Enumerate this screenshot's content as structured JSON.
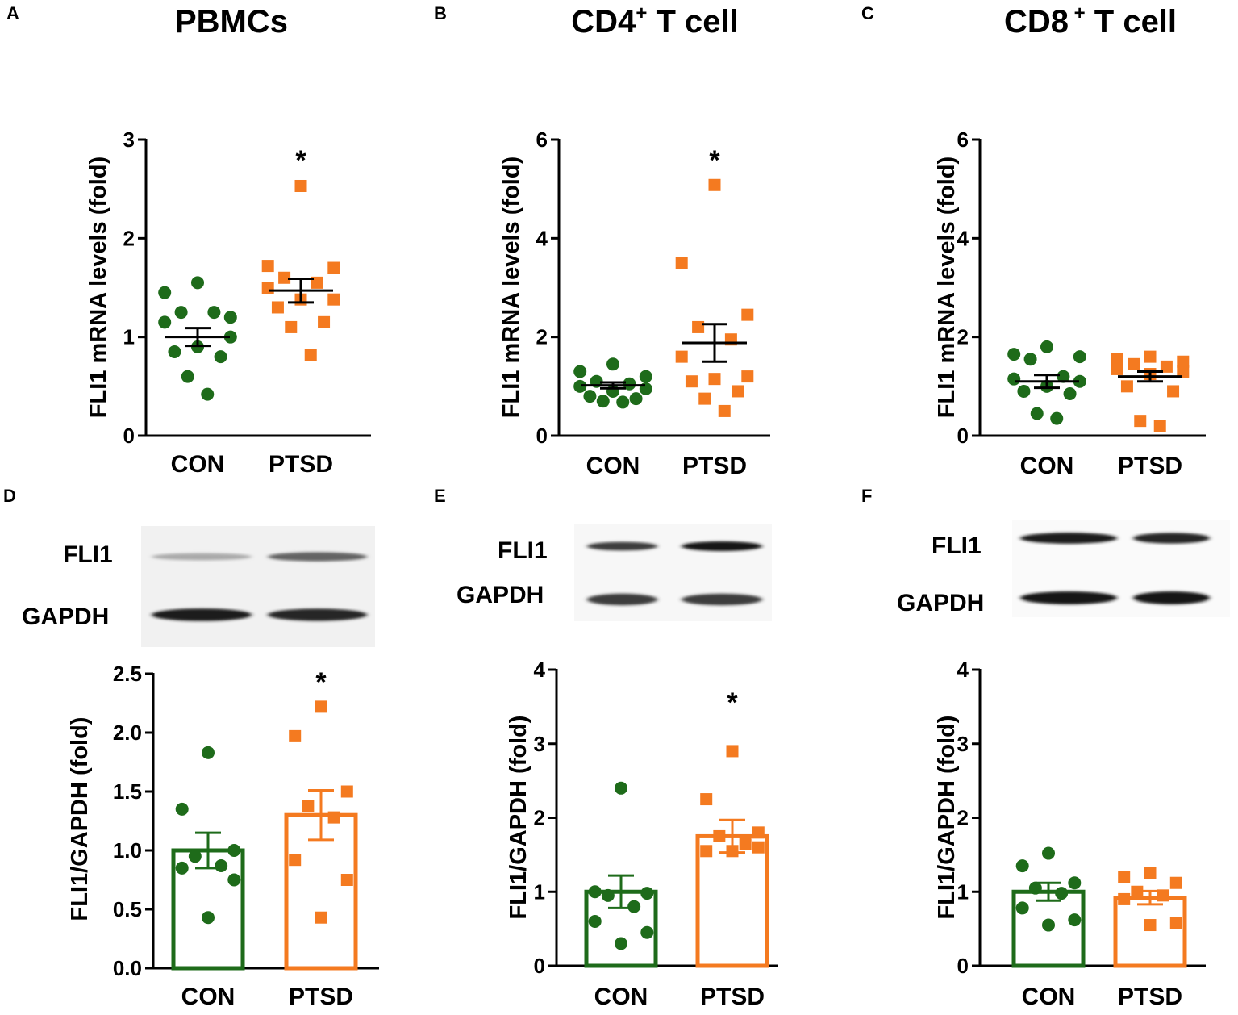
{
  "colors": {
    "con": "#1e6b1a",
    "ptsd": "#f47a20",
    "axis": "#000000"
  },
  "blots": [
    {
      "panel": "D",
      "labels": [
        "FLI1",
        "GAPDH"
      ],
      "bands": [
        {
          "intensity": [
            0.25,
            0.6
          ]
        },
        {
          "intensity": [
            0.95,
            0.9
          ]
        }
      ]
    },
    {
      "panel": "E",
      "labels": [
        "FLI1",
        "GAPDH"
      ],
      "bands": [
        {
          "intensity": [
            0.8,
            1.0
          ]
        },
        {
          "intensity": [
            0.8,
            0.8
          ]
        }
      ]
    },
    {
      "panel": "F",
      "labels": [
        "FLI1",
        "GAPDH"
      ],
      "bands": [
        {
          "intensity": [
            0.95,
            0.9
          ]
        },
        {
          "intensity": [
            1.0,
            1.0
          ]
        }
      ]
    }
  ],
  "chart_data": [
    {
      "panel": "A",
      "type": "scatter",
      "title": "PBMCs",
      "title_sup": "",
      "ylabel": "FLI1 mRNA levels (fold)",
      "xlabel": "",
      "categories": [
        "CON",
        "PTSD"
      ],
      "ylim": [
        0,
        3
      ],
      "yticks": [
        "0",
        "1",
        "2",
        "3"
      ],
      "ytick_values": [
        0,
        1,
        2,
        3
      ],
      "significance": "*",
      "series": [
        {
          "name": "CON",
          "marker": "circle",
          "mean": 1.0,
          "sem": 0.09,
          "points": [
            1.55,
            1.45,
            1.2,
            1.25,
            1.25,
            1.15,
            1.0,
            0.9,
            0.85,
            0.8,
            0.6,
            0.42
          ]
        },
        {
          "name": "PTSD",
          "marker": "square",
          "mean": 1.47,
          "sem": 0.12,
          "points": [
            2.53,
            1.72,
            1.7,
            1.6,
            1.55,
            1.5,
            1.38,
            1.38,
            1.3,
            1.15,
            1.1,
            0.82
          ]
        }
      ]
    },
    {
      "panel": "B",
      "type": "scatter",
      "title": "CD4",
      "title_sup": "+",
      "title_rest": " T cell",
      "ylabel": "FLI1 mRNA levels (fold)",
      "xlabel": "",
      "categories": [
        "CON",
        "PTSD"
      ],
      "ylim": [
        0,
        6
      ],
      "yticks": [
        "0",
        "2",
        "4",
        "6"
      ],
      "ytick_values": [
        0,
        2,
        4,
        6
      ],
      "significance": "*",
      "series": [
        {
          "name": "CON",
          "marker": "circle",
          "mean": 1.02,
          "sem": 0.06,
          "points": [
            1.45,
            1.3,
            1.2,
            1.1,
            1.05,
            1.0,
            0.95,
            0.9,
            0.8,
            0.75,
            0.7,
            0.68
          ]
        },
        {
          "name": "PTSD",
          "marker": "square",
          "mean": 1.88,
          "sem": 0.38,
          "points": [
            5.08,
            3.5,
            2.45,
            2.2,
            1.95,
            1.6,
            1.2,
            1.15,
            1.1,
            0.9,
            0.75,
            0.5
          ]
        }
      ]
    },
    {
      "panel": "C",
      "type": "scatter",
      "title": "CD8",
      "title_sup": " +",
      "title_rest": " T cell",
      "ylabel": "FLI1 mRNA levels (fold)",
      "xlabel": "",
      "categories": [
        "CON",
        "PTSD"
      ],
      "ylim": [
        0,
        6
      ],
      "yticks": [
        "0",
        "2",
        "4",
        "6"
      ],
      "ytick_values": [
        0,
        2,
        4,
        6
      ],
      "significance": "",
      "series": [
        {
          "name": "CON",
          "marker": "circle",
          "mean": 1.1,
          "sem": 0.13,
          "points": [
            1.8,
            1.65,
            1.6,
            1.55,
            1.2,
            1.15,
            1.1,
            1.0,
            0.9,
            0.85,
            0.45,
            0.35
          ]
        },
        {
          "name": "PTSD",
          "marker": "square",
          "mean": 1.2,
          "sem": 0.1,
          "points": [
            1.6,
            1.55,
            1.5,
            1.45,
            1.4,
            1.35,
            1.3,
            1.25,
            1.0,
            0.9,
            0.3,
            0.2
          ]
        }
      ]
    },
    {
      "panel": "D",
      "type": "bar",
      "title": "",
      "title_sup": "",
      "ylabel": "FLI1/GAPDH (fold)",
      "xlabel": "",
      "categories": [
        "CON",
        "PTSD"
      ],
      "ylim": [
        0,
        2.5
      ],
      "yticks": [
        "0.0",
        "0.5",
        "1.0",
        "1.5",
        "2.0",
        "2.5"
      ],
      "ytick_values": [
        0,
        0.5,
        1.0,
        1.5,
        2.0,
        2.5
      ],
      "significance": "*",
      "series": [
        {
          "name": "CON",
          "marker": "circle",
          "mean": 1.0,
          "sem": 0.15,
          "points": [
            1.83,
            1.35,
            1.0,
            0.95,
            0.87,
            0.85,
            0.75,
            0.43
          ]
        },
        {
          "name": "PTSD",
          "marker": "square",
          "mean": 1.3,
          "sem": 0.21,
          "points": [
            2.22,
            1.97,
            1.5,
            1.38,
            1.28,
            0.92,
            0.75,
            0.43
          ]
        }
      ]
    },
    {
      "panel": "E",
      "type": "bar",
      "title": "",
      "title_sup": "",
      "ylabel": "FLI1/GAPDH (fold)",
      "xlabel": "",
      "categories": [
        "CON",
        "PTSD"
      ],
      "ylim": [
        0,
        4
      ],
      "yticks": [
        "0",
        "1",
        "2",
        "3",
        "4"
      ],
      "ytick_values": [
        0,
        1,
        2,
        3,
        4
      ],
      "significance": "*",
      "series": [
        {
          "name": "CON",
          "marker": "circle",
          "mean": 1.0,
          "sem": 0.22,
          "points": [
            2.4,
            1.0,
            0.98,
            0.95,
            0.8,
            0.6,
            0.45,
            0.3
          ]
        },
        {
          "name": "PTSD",
          "marker": "square",
          "mean": 1.75,
          "sem": 0.22,
          "points": [
            2.9,
            2.25,
            1.8,
            1.75,
            1.65,
            1.55,
            1.6,
            1.55
          ]
        }
      ]
    },
    {
      "panel": "F",
      "type": "bar",
      "title": "",
      "title_sup": "",
      "ylabel": "FLI1/GAPDH (fold)",
      "xlabel": "",
      "categories": [
        "CON",
        "PTSD"
      ],
      "ylim": [
        0,
        4
      ],
      "yticks": [
        "0",
        "1",
        "2",
        "3",
        "4"
      ],
      "ytick_values": [
        0,
        1,
        2,
        3,
        4
      ],
      "significance": "",
      "series": [
        {
          "name": "CON",
          "marker": "circle",
          "mean": 1.0,
          "sem": 0.12,
          "points": [
            1.52,
            1.35,
            1.12,
            1.05,
            0.98,
            0.78,
            0.62,
            0.55
          ]
        },
        {
          "name": "PTSD",
          "marker": "square",
          "mean": 0.92,
          "sem": 0.09,
          "points": [
            1.25,
            1.2,
            1.12,
            1.0,
            0.95,
            0.9,
            0.58,
            0.55
          ]
        }
      ]
    }
  ],
  "panel_letters": [
    "A",
    "B",
    "C",
    "D",
    "E",
    "F"
  ]
}
